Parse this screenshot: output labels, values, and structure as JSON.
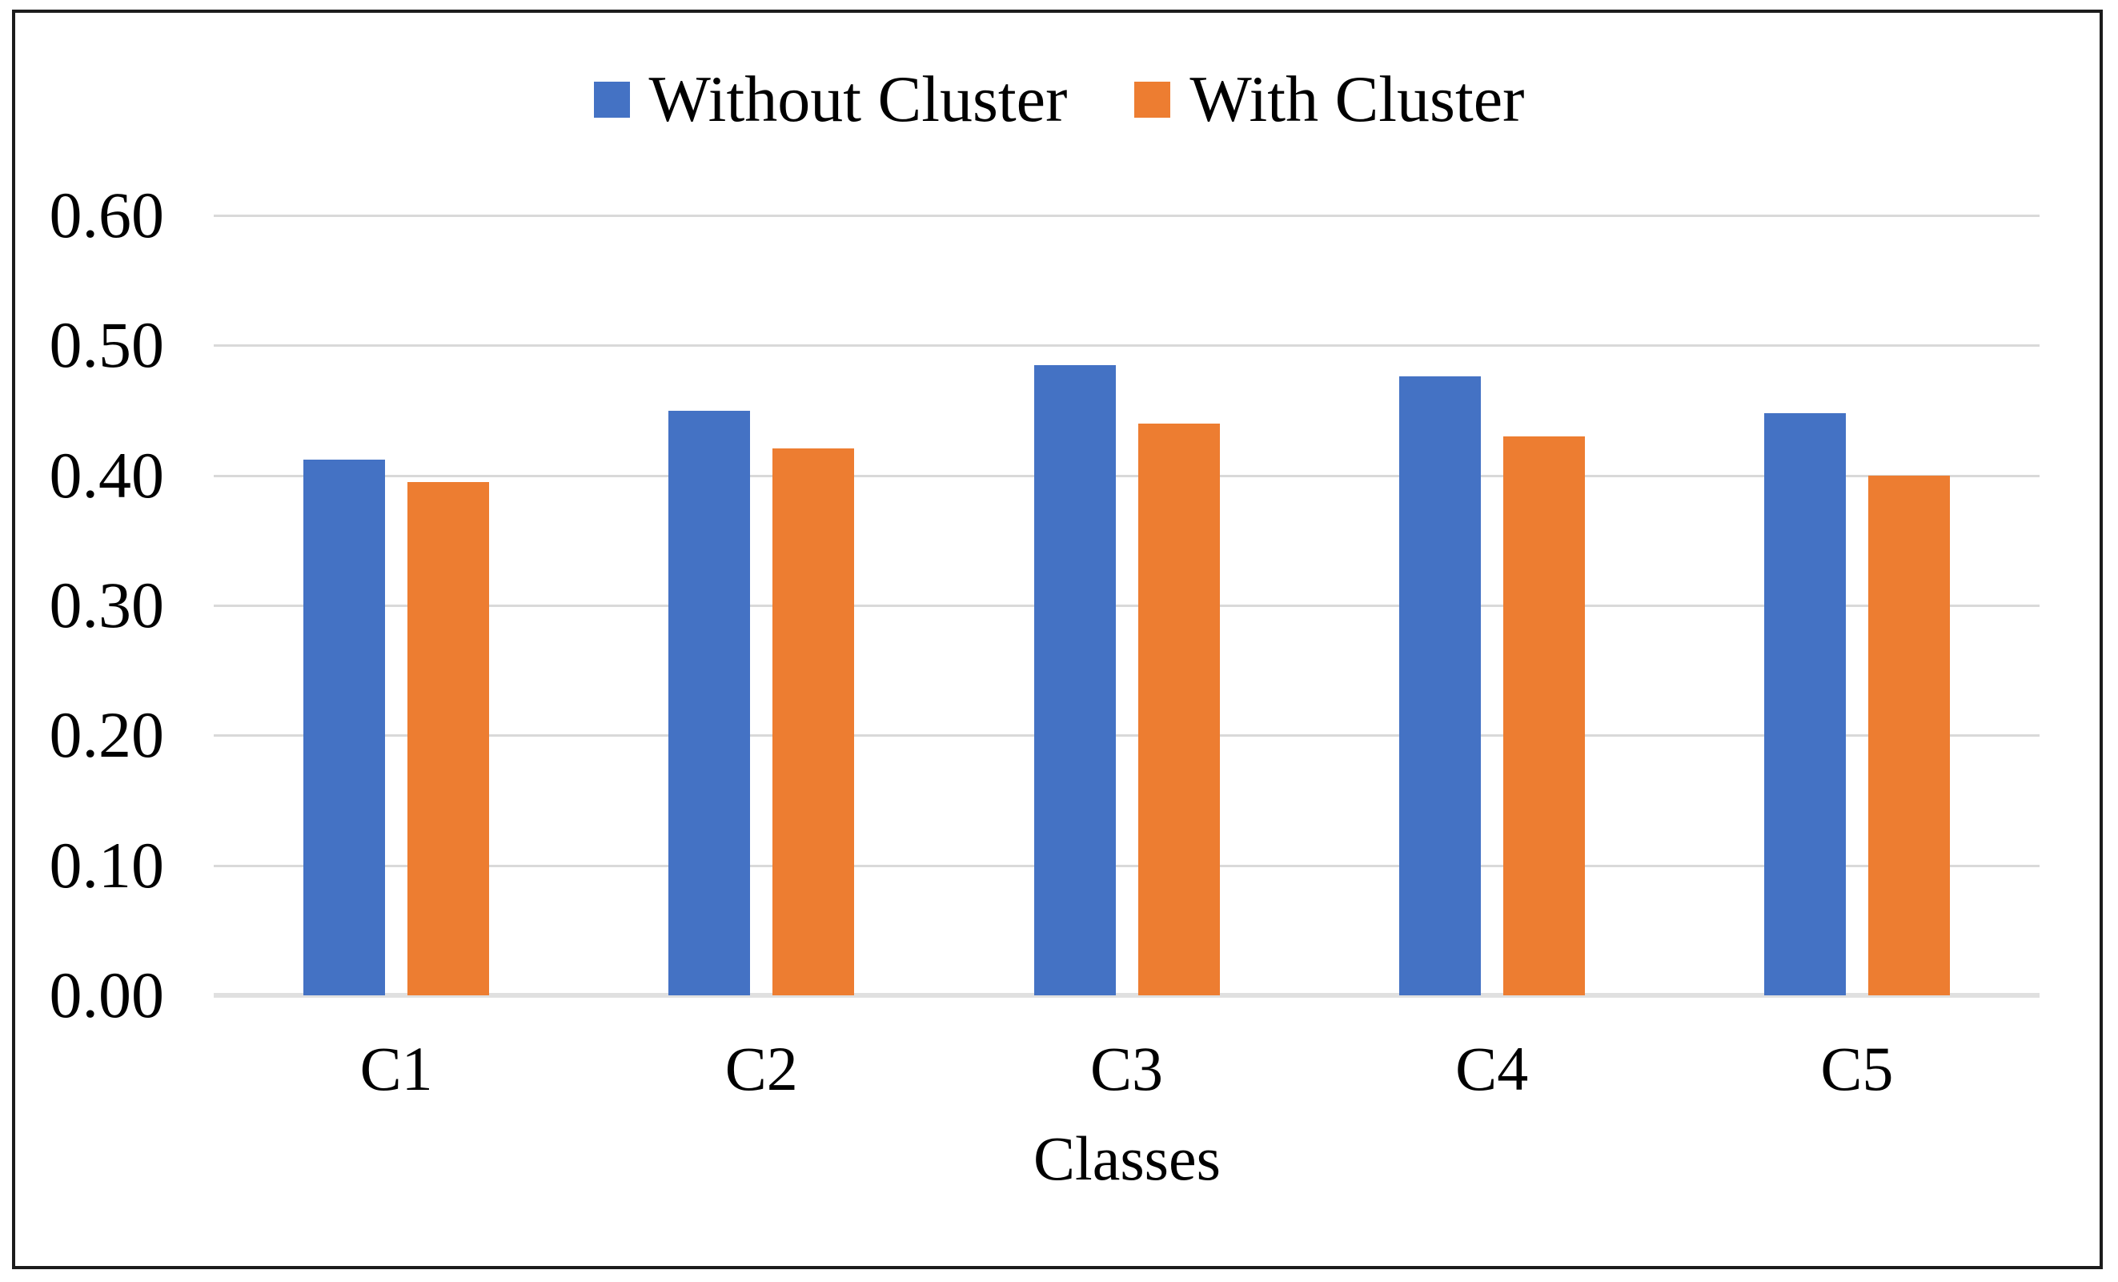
{
  "chart_data": {
    "type": "bar",
    "title": "",
    "categories": [
      "C1",
      "C2",
      "C3",
      "C4",
      "C5"
    ],
    "series": [
      {
        "name": "Without Cluster",
        "color": "#4472c4",
        "values": [
          0.412,
          0.45,
          0.485,
          0.476,
          0.448
        ]
      },
      {
        "name": "With Cluster",
        "color": "#ed7d31",
        "values": [
          0.395,
          0.421,
          0.44,
          0.43,
          0.4
        ]
      }
    ],
    "xlabel": "Classes",
    "ylabel": "",
    "ylim": [
      0.0,
      0.6
    ],
    "ytick_step": 0.1,
    "yticks": [
      "0.60",
      "0.50",
      "0.40",
      "0.30",
      "0.20",
      "0.10",
      "0.00"
    ],
    "grid": true,
    "gridline_color": "#d9d9d9",
    "axis_line_color": "#e0e0e0",
    "legend_position": "top-center",
    "frame_color": "#1c1c1c"
  }
}
